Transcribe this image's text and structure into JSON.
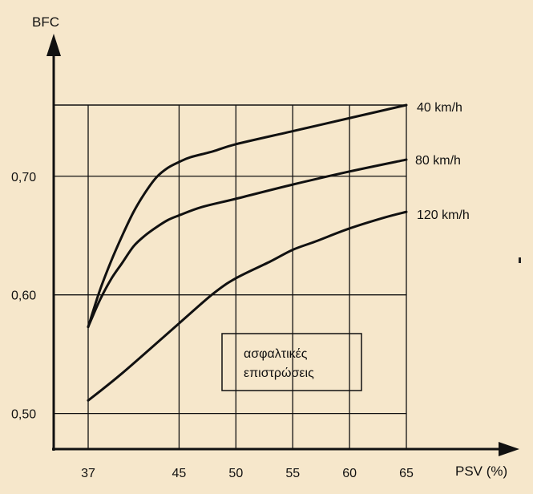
{
  "chart_data": {
    "type": "line",
    "xlabel": "PSV (%)",
    "ylabel": "BFC",
    "xlim": [
      37,
      65
    ],
    "ylim": [
      0.47,
      0.76
    ],
    "x_ticks": [
      "37",
      "45",
      "50",
      "55",
      "60",
      "65"
    ],
    "y_ticks": [
      "0,50",
      "0,60",
      "0,70"
    ],
    "grid": true,
    "annotation": [
      "ασφαλτικές",
      "επιστρώσεις"
    ],
    "series": [
      {
        "name": "40 km/h",
        "x": [
          37,
          38,
          39,
          40,
          41,
          42,
          43,
          44,
          45,
          46,
          48,
          50,
          55,
          60,
          65
        ],
        "y": [
          0.573,
          0.603,
          0.628,
          0.65,
          0.67,
          0.686,
          0.699,
          0.707,
          0.712,
          0.716,
          0.721,
          0.727,
          0.738,
          0.749,
          0.76
        ]
      },
      {
        "name": "80 km/h",
        "x": [
          37,
          38,
          39,
          40,
          41,
          42,
          43,
          44,
          45,
          47,
          50,
          55,
          60,
          65
        ],
        "y": [
          0.573,
          0.595,
          0.613,
          0.627,
          0.641,
          0.65,
          0.657,
          0.663,
          0.667,
          0.674,
          0.681,
          0.693,
          0.704,
          0.714
        ]
      },
      {
        "name": "120 km/h",
        "x": [
          37,
          40,
          45,
          48,
          50,
          53,
          55,
          57,
          60,
          63,
          65
        ],
        "y": [
          0.511,
          0.534,
          0.576,
          0.601,
          0.614,
          0.628,
          0.638,
          0.645,
          0.656,
          0.665,
          0.67
        ]
      }
    ]
  }
}
